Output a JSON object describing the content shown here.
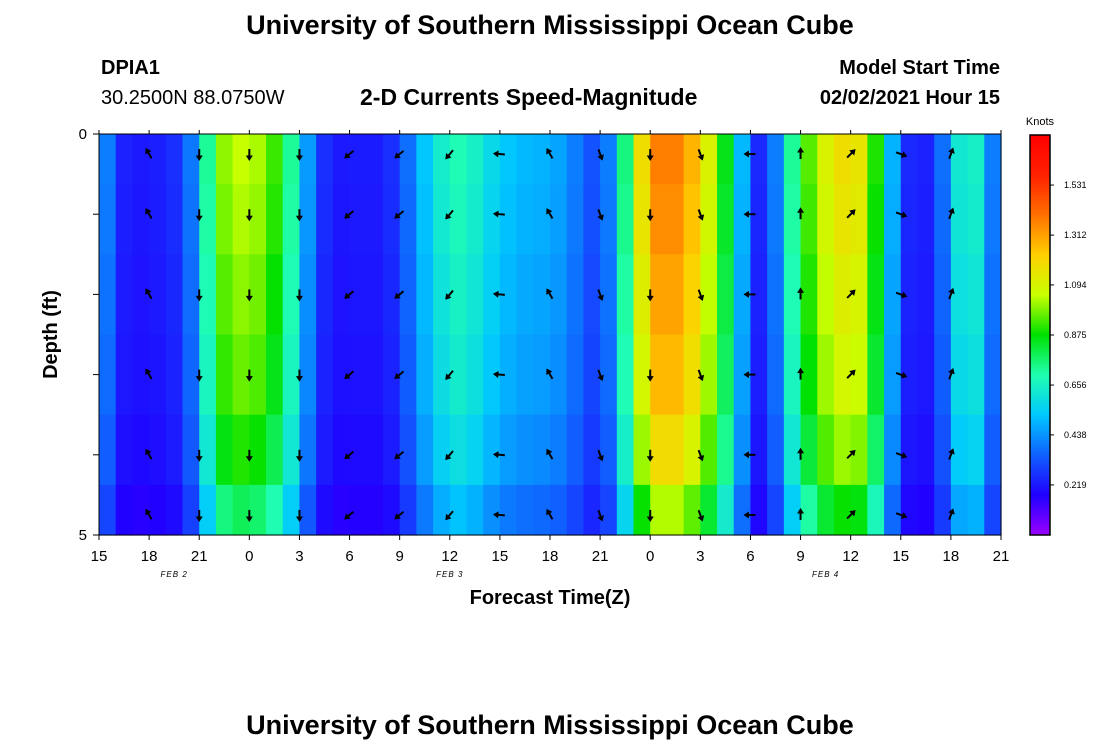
{
  "page": {
    "title_top": "University of Southern Mississippi Ocean Cube",
    "title_bottom": "University of Southern Mississippi Ocean Cube",
    "station_id": "DPIA1",
    "station_coords": "30.2500N 88.0750W",
    "plot_title": "2-D Currents Speed-Magnitude",
    "model_start_label": "Model Start Time",
    "model_start_value": "02/02/2021 Hour 15"
  },
  "chart_data": {
    "type": "heatmap",
    "title": "2-D Currents Speed-Magnitude",
    "xlabel": "Forecast Time(Z)",
    "ylabel": "Depth (ft)",
    "x_tick_labels": [
      "15",
      "18",
      "21",
      "0",
      "3",
      "6",
      "9",
      "12",
      "15",
      "18",
      "21",
      "0",
      "3",
      "6",
      "9",
      "12",
      "15",
      "18",
      "21"
    ],
    "date_labels": [
      {
        "label": "FEB 2",
        "hour_offset": 4.5
      },
      {
        "label": "FEB 3",
        "hour_offset": 21
      },
      {
        "label": "FEB 4",
        "hour_offset": 43.5
      }
    ],
    "x_range_hours": [
      0,
      54
    ],
    "y_range_ft": [
      0,
      5
    ],
    "y_tick_labels": [
      "0",
      "5"
    ],
    "depth_rows_ft": [
      0.25,
      1.0,
      2.0,
      3.0,
      4.0,
      4.75
    ],
    "colorbar": {
      "unit": "Knots",
      "ticks": [
        "1.531",
        "1.312",
        "1.094",
        "0.875",
        "0.656",
        "0.438",
        "0.219"
      ],
      "tick_values": [
        1.531,
        1.312,
        1.094,
        0.875,
        0.656,
        0.438,
        0.219
      ],
      "range": [
        0,
        1.75
      ],
      "colors": [
        "#9900ff",
        "#2000ff",
        "#1060ff",
        "#00c8ff",
        "#20ffb0",
        "#00e000",
        "#c8ff00",
        "#ffd000",
        "#ff7000",
        "#ff2000",
        "#ff0000"
      ]
    },
    "speed_profile": {
      "hours": [
        0,
        1,
        2,
        3,
        4,
        5,
        6,
        7,
        8,
        9,
        10,
        11,
        12,
        13,
        14,
        15,
        16,
        17,
        18,
        19,
        20,
        21,
        22,
        23,
        24,
        25,
        26,
        27,
        28,
        29,
        30,
        31,
        32,
        33,
        34,
        35,
        36,
        37,
        38,
        39,
        40,
        41,
        42,
        43,
        44,
        45,
        46,
        47,
        48,
        49,
        50,
        51,
        52,
        53,
        54
      ],
      "speed_knots": [
        0.55,
        0.25,
        0.22,
        0.22,
        0.24,
        0.28,
        0.5,
        0.95,
        1.05,
        1.05,
        1.0,
        0.85,
        0.6,
        0.3,
        0.22,
        0.22,
        0.23,
        0.22,
        0.3,
        0.45,
        0.6,
        0.68,
        0.7,
        0.6,
        0.55,
        0.5,
        0.5,
        0.48,
        0.45,
        0.35,
        0.3,
        0.5,
        1.0,
        1.35,
        1.4,
        1.35,
        1.2,
        1.0,
        0.7,
        0.3,
        0.2,
        0.6,
        0.85,
        1.05,
        1.15,
        1.2,
        1.1,
        0.7,
        0.28,
        0.22,
        0.25,
        0.5,
        0.75,
        0.55,
        0.25
      ],
      "depth_factors": [
        1.0,
        0.98,
        0.95,
        0.92,
        0.86,
        0.75
      ]
    },
    "arrow_columns_hours": [
      3,
      6,
      9,
      12,
      15,
      18,
      21,
      24,
      27,
      30,
      33,
      36,
      39,
      42,
      45,
      48,
      51
    ],
    "arrow_directions_deg": [
      330,
      180,
      180,
      180,
      230,
      230,
      220,
      275,
      330,
      160,
      180,
      160,
      270,
      0,
      45,
      110,
      20
    ]
  }
}
